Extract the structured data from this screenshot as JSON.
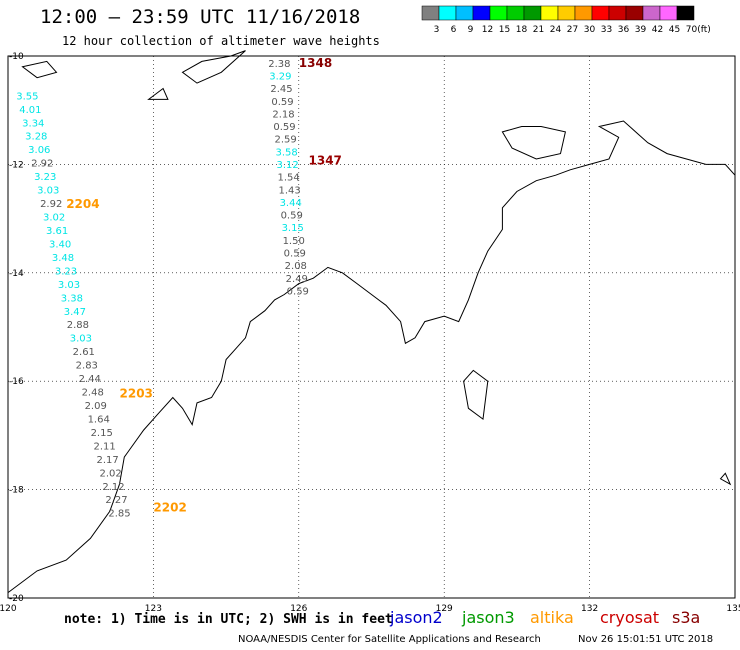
{
  "title": "12:00 – 23:59 UTC 11/16/2018",
  "subtitle": "12 hour collection of altimeter wave heights",
  "note": "note: 1) Time is in UTC; 2) SWH is in feet",
  "credit": "NOAA/NESDIS Center for Satellite Applications and Research",
  "generated": "Nov 26 15:01:51 UTC 2018",
  "satellites": [
    {
      "name": "jason2",
      "color": "#0000cc"
    },
    {
      "name": "jason3",
      "color": "#009900"
    },
    {
      "name": "altika",
      "color": "#ff9900"
    },
    {
      "name": "cryosat",
      "color": "#cc0000"
    },
    {
      "name": "s3a",
      "color": "#880000"
    }
  ],
  "legend": {
    "unit": "(ft)",
    "bins": [
      {
        "label": "3",
        "color": "#808080"
      },
      {
        "label": "6",
        "color": "#00ffff"
      },
      {
        "label": "9",
        "color": "#00bfff"
      },
      {
        "label": "12",
        "color": "#0000ff"
      },
      {
        "label": "15",
        "color": "#00ff00"
      },
      {
        "label": "18",
        "color": "#00cc00"
      },
      {
        "label": "21",
        "color": "#009900"
      },
      {
        "label": "24",
        "color": "#ffff00"
      },
      {
        "label": "27",
        "color": "#ffcc00"
      },
      {
        "label": "30",
        "color": "#ff9900"
      },
      {
        "label": "33",
        "color": "#ff0000"
      },
      {
        "label": "36",
        "color": "#cc0000"
      },
      {
        "label": "39",
        "color": "#990000"
      },
      {
        "label": "42",
        "color": "#cc66cc"
      },
      {
        "label": "45",
        "color": "#ff66ff"
      },
      {
        "label": "70",
        "color": "#000000"
      }
    ]
  },
  "axes": {
    "lon_ticks": [
      120,
      123,
      126,
      129,
      132,
      135
    ],
    "lon_labels": [
      "120",
      "123",
      "126",
      "129",
      "132",
      "135"
    ],
    "lat_ticks": [
      -10,
      -12,
      -14,
      -16,
      -18,
      -20
    ],
    "lat_labels": [
      "-10",
      "-12",
      "-14",
      "-16",
      "-18",
      "-20"
    ],
    "lon_range": [
      120,
      135
    ],
    "lat_range": [
      -20,
      -10
    ],
    "grid": true
  },
  "colors": {
    "gray": "#555555",
    "cyan": "#00e5e5",
    "orange": "#ff9900",
    "maroon": "#880000",
    "darkred": "#990000"
  },
  "tracks": [
    {
      "id": "track-east",
      "pass": "1348",
      "pass_color": "maroon",
      "pass_lon": 126.0,
      "pass_lat": -10.2,
      "lon_start": 125.6,
      "lon_end": 125.98,
      "lat_start": -10.2,
      "lat_end": -14.4,
      "values": [
        {
          "v": "2.38",
          "c": "gray"
        },
        {
          "v": "3.29",
          "c": "cyan"
        },
        {
          "v": "2.45",
          "c": "gray"
        },
        {
          "v": "0.59",
          "c": "gray"
        },
        {
          "v": "2.18",
          "c": "gray"
        },
        {
          "v": "0.59",
          "c": "gray"
        },
        {
          "v": "2.59",
          "c": "gray"
        },
        {
          "v": "3.58",
          "c": "cyan"
        },
        {
          "v": "3.12",
          "c": "cyan"
        },
        {
          "v": "1.54",
          "c": "gray"
        },
        {
          "v": "1.43",
          "c": "gray"
        },
        {
          "v": "3.44",
          "c": "cyan"
        },
        {
          "v": "0.59",
          "c": "gray"
        },
        {
          "v": "3.15",
          "c": "cyan"
        },
        {
          "v": "1.50",
          "c": "gray"
        },
        {
          "v": "0.59",
          "c": "gray"
        },
        {
          "v": "2.08",
          "c": "gray"
        },
        {
          "v": "2.49",
          "c": "gray"
        },
        {
          "v": "0.59",
          "c": "gray"
        }
      ]
    },
    {
      "id": "track-west",
      "pass": "2204",
      "pass_color": "orange",
      "pass_lon": 121.2,
      "pass_lat": -12.8,
      "lon_start": 120.4,
      "lon_end": 122.3,
      "lat_start": -10.8,
      "lat_end": -18.5,
      "values": [
        {
          "v": "3.55",
          "c": "cyan"
        },
        {
          "v": "4.01",
          "c": "cyan"
        },
        {
          "v": "3.34",
          "c": "cyan"
        },
        {
          "v": "3.28",
          "c": "cyan"
        },
        {
          "v": "3.06",
          "c": "cyan"
        },
        {
          "v": "2.92",
          "c": "gray"
        },
        {
          "v": "3.23",
          "c": "cyan"
        },
        {
          "v": "3.03",
          "c": "cyan"
        },
        {
          "v": "2.92",
          "c": "gray"
        },
        {
          "v": "3.02",
          "c": "cyan"
        },
        {
          "v": "3.61",
          "c": "cyan"
        },
        {
          "v": "3.40",
          "c": "cyan"
        },
        {
          "v": "3.48",
          "c": "cyan"
        },
        {
          "v": "3.23",
          "c": "cyan"
        },
        {
          "v": "3.03",
          "c": "cyan"
        },
        {
          "v": "3.38",
          "c": "cyan"
        },
        {
          "v": "3.47",
          "c": "cyan"
        },
        {
          "v": "2.88",
          "c": "gray"
        },
        {
          "v": "3.03",
          "c": "cyan"
        },
        {
          "v": "2.61",
          "c": "gray"
        },
        {
          "v": "2.83",
          "c": "gray"
        },
        {
          "v": "2.44",
          "c": "gray"
        },
        {
          "v": "2.48",
          "c": "gray"
        },
        {
          "v": "2.09",
          "c": "gray"
        },
        {
          "v": "1.64",
          "c": "gray"
        },
        {
          "v": "2.15",
          "c": "gray"
        },
        {
          "v": "2.11",
          "c": "gray"
        },
        {
          "v": "2.17",
          "c": "gray"
        },
        {
          "v": "2.02",
          "c": "gray"
        },
        {
          "v": "2.12",
          "c": "gray"
        },
        {
          "v": "2.27",
          "c": "gray"
        },
        {
          "v": "2.85",
          "c": "gray"
        }
      ]
    }
  ],
  "pass_labels": [
    {
      "id": "1347",
      "color": "darkred",
      "lon": 126.2,
      "lat": -12.0
    },
    {
      "id": "2203",
      "color": "orange",
      "lon": 122.3,
      "lat": -16.3
    },
    {
      "id": "2202",
      "color": "orange",
      "lon": 123.0,
      "lat": -18.4
    }
  ]
}
